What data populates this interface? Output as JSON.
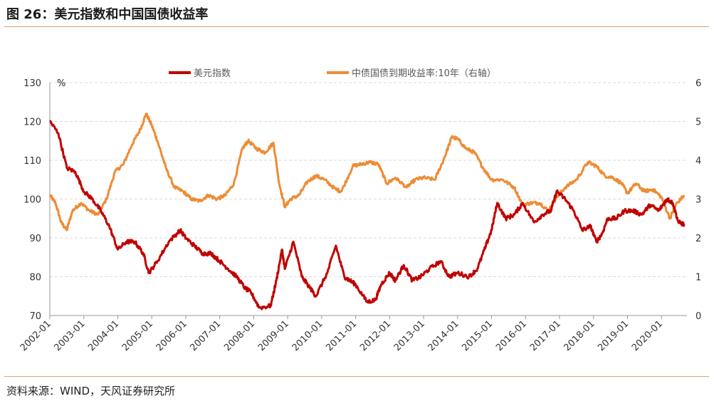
{
  "figure_title": "图 26：美元指数和中国国债收益率",
  "source_text": "资料来源：WIND，天风证券研究所",
  "colors": {
    "usd": "#c00000",
    "cny10y": "#ed8c34",
    "grid": "#d9d9d9",
    "rule": "#d8a36a"
  },
  "chart_data": {
    "type": "line",
    "title": "",
    "left_axis": {
      "unit": "%",
      "range": [
        70,
        130
      ],
      "ticks": [
        70,
        80,
        90,
        100,
        110,
        120,
        130
      ]
    },
    "right_axis": {
      "range": [
        0,
        6
      ],
      "ticks": [
        0,
        1,
        2,
        3,
        4,
        5,
        6
      ]
    },
    "x_range": [
      "2002-01",
      "2020-10"
    ],
    "x_ticks": [
      "2002-01",
      "2003-01",
      "2004-01",
      "2005-01",
      "2006-01",
      "2007-01",
      "2008-01",
      "2009-01",
      "2010-01",
      "2011-01",
      "2012-01",
      "2013-01",
      "2014-01",
      "2015-01",
      "2016-01",
      "2017-01",
      "2018-01",
      "2019-01",
      "2020-01"
    ],
    "grid": "horizontal",
    "legend_position": "top",
    "series": [
      {
        "name": "美元指数",
        "axis": "left",
        "color": "#c00000",
        "points": [
          [
            "2002-01",
            120
          ],
          [
            "2002-04",
            117
          ],
          [
            "2002-07",
            108
          ],
          [
            "2002-10",
            107
          ],
          [
            "2003-01",
            102
          ],
          [
            "2003-04",
            100
          ],
          [
            "2003-07",
            97
          ],
          [
            "2003-10",
            93
          ],
          [
            "2004-01",
            87
          ],
          [
            "2004-04",
            89
          ],
          [
            "2004-07",
            89
          ],
          [
            "2004-10",
            86
          ],
          [
            "2004-12",
            81
          ],
          [
            "2005-03",
            84
          ],
          [
            "2005-07",
            89
          ],
          [
            "2005-11",
            92
          ],
          [
            "2006-01",
            90
          ],
          [
            "2006-04",
            88
          ],
          [
            "2006-07",
            86
          ],
          [
            "2006-10",
            86
          ],
          [
            "2007-01",
            84
          ],
          [
            "2007-04",
            82
          ],
          [
            "2007-07",
            80
          ],
          [
            "2007-10",
            77
          ],
          [
            "2007-12",
            76
          ],
          [
            "2008-03",
            72
          ],
          [
            "2008-07",
            72.5
          ],
          [
            "2008-09",
            79
          ],
          [
            "2008-11",
            87
          ],
          [
            "2008-12",
            82
          ],
          [
            "2009-03",
            89
          ],
          [
            "2009-06",
            80
          ],
          [
            "2009-09",
            77
          ],
          [
            "2009-11",
            75
          ],
          [
            "2010-03",
            81
          ],
          [
            "2010-06",
            88
          ],
          [
            "2010-09",
            80
          ],
          [
            "2010-11",
            79
          ],
          [
            "2011-01",
            78
          ],
          [
            "2011-05",
            73.5
          ],
          [
            "2011-08",
            74
          ],
          [
            "2011-10",
            78
          ],
          [
            "2012-01",
            81
          ],
          [
            "2012-03",
            79
          ],
          [
            "2012-06",
            83
          ],
          [
            "2012-09",
            79
          ],
          [
            "2012-12",
            80
          ],
          [
            "2013-03",
            82
          ],
          [
            "2013-07",
            84
          ],
          [
            "2013-10",
            80
          ],
          [
            "2014-01",
            81
          ],
          [
            "2014-05",
            80
          ],
          [
            "2014-08",
            82
          ],
          [
            "2014-11",
            88
          ],
          [
            "2015-01",
            92
          ],
          [
            "2015-03",
            99
          ],
          [
            "2015-06",
            95
          ],
          [
            "2015-09",
            96
          ],
          [
            "2015-12",
            99
          ],
          [
            "2016-04",
            94
          ],
          [
            "2016-07",
            96
          ],
          [
            "2016-10",
            97
          ],
          [
            "2016-12",
            102
          ],
          [
            "2017-03",
            100
          ],
          [
            "2017-06",
            97
          ],
          [
            "2017-09",
            92
          ],
          [
            "2017-12",
            93
          ],
          [
            "2018-02",
            89
          ],
          [
            "2018-04",
            91
          ],
          [
            "2018-06",
            95
          ],
          [
            "2018-09",
            95
          ],
          [
            "2018-12",
            97
          ],
          [
            "2019-03",
            97
          ],
          [
            "2019-06",
            96
          ],
          [
            "2019-09",
            98.5
          ],
          [
            "2019-12",
            97
          ],
          [
            "2020-02",
            99
          ],
          [
            "2020-03",
            100
          ],
          [
            "2020-05",
            99
          ],
          [
            "2020-07",
            94
          ],
          [
            "2020-09",
            93.5
          ]
        ]
      },
      {
        "name": "中债国债到期收益率:10年（右轴）",
        "axis": "right",
        "color": "#ed8c34",
        "points": [
          [
            "2002-01",
            3.1
          ],
          [
            "2002-03",
            2.9
          ],
          [
            "2002-05",
            2.4
          ],
          [
            "2002-07",
            2.2
          ],
          [
            "2002-09",
            2.7
          ],
          [
            "2002-12",
            2.9
          ],
          [
            "2003-03",
            2.7
          ],
          [
            "2003-06",
            2.6
          ],
          [
            "2003-09",
            3.0
          ],
          [
            "2003-12",
            3.7
          ],
          [
            "2004-03",
            3.9
          ],
          [
            "2004-06",
            4.4
          ],
          [
            "2004-09",
            4.8
          ],
          [
            "2004-11",
            5.2
          ],
          [
            "2005-01",
            4.9
          ],
          [
            "2005-03",
            4.5
          ],
          [
            "2005-06",
            3.8
          ],
          [
            "2005-09",
            3.3
          ],
          [
            "2005-12",
            3.2
          ],
          [
            "2006-03",
            3.0
          ],
          [
            "2006-06",
            2.95
          ],
          [
            "2006-09",
            3.1
          ],
          [
            "2006-12",
            3.0
          ],
          [
            "2007-03",
            3.1
          ],
          [
            "2007-06",
            3.4
          ],
          [
            "2007-09",
            4.3
          ],
          [
            "2007-11",
            4.5
          ],
          [
            "2008-02",
            4.3
          ],
          [
            "2008-05",
            4.2
          ],
          [
            "2008-08",
            4.45
          ],
          [
            "2008-10",
            3.4
          ],
          [
            "2008-12",
            2.8
          ],
          [
            "2009-02",
            3.0
          ],
          [
            "2009-05",
            3.1
          ],
          [
            "2009-08",
            3.45
          ],
          [
            "2009-11",
            3.6
          ],
          [
            "2010-02",
            3.5
          ],
          [
            "2010-06",
            3.25
          ],
          [
            "2010-08",
            3.2
          ],
          [
            "2010-12",
            3.85
          ],
          [
            "2011-03",
            3.9
          ],
          [
            "2011-06",
            3.95
          ],
          [
            "2011-09",
            3.9
          ],
          [
            "2011-12",
            3.4
          ],
          [
            "2012-03",
            3.55
          ],
          [
            "2012-07",
            3.3
          ],
          [
            "2012-10",
            3.5
          ],
          [
            "2013-01",
            3.55
          ],
          [
            "2013-05",
            3.5
          ],
          [
            "2013-08",
            4.0
          ],
          [
            "2013-11",
            4.6
          ],
          [
            "2014-01",
            4.55
          ],
          [
            "2014-04",
            4.3
          ],
          [
            "2014-07",
            4.2
          ],
          [
            "2014-10",
            3.8
          ],
          [
            "2015-01",
            3.5
          ],
          [
            "2015-05",
            3.5
          ],
          [
            "2015-09",
            3.3
          ],
          [
            "2015-12",
            2.85
          ],
          [
            "2016-03",
            2.9
          ],
          [
            "2016-06",
            2.9
          ],
          [
            "2016-09",
            2.7
          ],
          [
            "2016-12",
            3.05
          ],
          [
            "2017-03",
            3.3
          ],
          [
            "2017-07",
            3.5
          ],
          [
            "2017-11",
            3.95
          ],
          [
            "2018-02",
            3.85
          ],
          [
            "2018-05",
            3.6
          ],
          [
            "2018-08",
            3.55
          ],
          [
            "2018-11",
            3.4
          ],
          [
            "2019-01",
            3.15
          ],
          [
            "2019-04",
            3.4
          ],
          [
            "2019-07",
            3.2
          ],
          [
            "2019-10",
            3.25
          ],
          [
            "2020-01",
            3.05
          ],
          [
            "2020-04",
            2.5
          ],
          [
            "2020-06",
            2.85
          ],
          [
            "2020-09",
            3.1
          ]
        ]
      }
    ]
  }
}
